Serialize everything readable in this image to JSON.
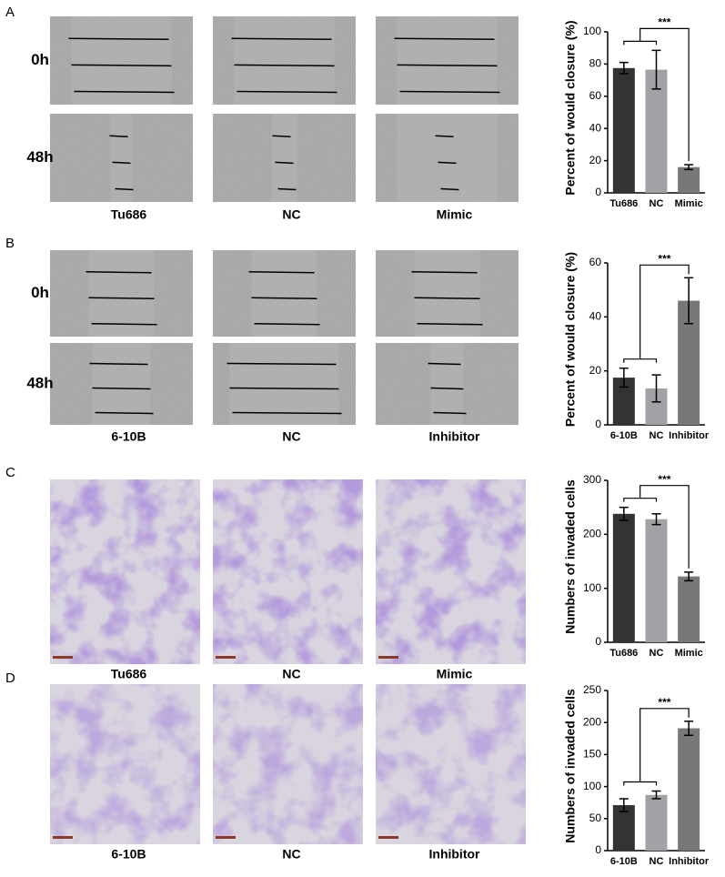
{
  "panels": [
    {
      "label": "A",
      "rows": [
        "0h",
        "48h"
      ],
      "columns": [
        "Tu686",
        "NC",
        "Mimic"
      ]
    },
    {
      "label": "B",
      "rows": [
        "0h",
        "48h"
      ],
      "columns": [
        "6-10B",
        "NC",
        "Inhibitor"
      ]
    },
    {
      "label": "C",
      "columns": [
        "Tu686",
        "NC",
        "Mimic"
      ]
    },
    {
      "label": "D",
      "columns": [
        "6-10B",
        "NC",
        "Inhibitor"
      ]
    }
  ],
  "chart_data": [
    {
      "type": "bar",
      "ylabel": "Percent of would closure (%)",
      "categories": [
        "Tu686",
        "NC",
        "Mimic"
      ],
      "values": [
        77.5,
        76.5,
        16
      ],
      "errors": [
        3.5,
        12,
        1.5
      ],
      "colors": [
        "#333333",
        "#a2a2a6",
        "#787878"
      ],
      "ylim": [
        0,
        100
      ],
      "yticks": [
        0,
        20,
        40,
        60,
        80,
        100
      ],
      "annotation": "***"
    },
    {
      "type": "bar",
      "ylabel": "Percent of would closure (%)",
      "categories": [
        "6-10B",
        "NC",
        "Inhibitor"
      ],
      "values": [
        17.5,
        13.5,
        46
      ],
      "errors": [
        3.5,
        5,
        8.5
      ],
      "colors": [
        "#333333",
        "#a2a2a6",
        "#787878"
      ],
      "ylim": [
        0,
        60
      ],
      "yticks": [
        0,
        20,
        40,
        60
      ],
      "annotation": "***"
    },
    {
      "type": "bar",
      "ylabel": "Numbers of invaded cells",
      "categories": [
        "Tu686",
        "NC",
        "Mimic"
      ],
      "values": [
        238,
        228,
        122
      ],
      "errors": [
        12,
        10,
        8
      ],
      "colors": [
        "#333333",
        "#a2a2a6",
        "#787878"
      ],
      "ylim": [
        0,
        300
      ],
      "yticks": [
        0,
        100,
        200,
        300
      ],
      "annotation": "***"
    },
    {
      "type": "bar",
      "ylabel": "Numbers of invaded cells",
      "categories": [
        "6-10B",
        "NC",
        "Inhibitor"
      ],
      "values": [
        71,
        87,
        191
      ],
      "errors": [
        10,
        6,
        11
      ],
      "colors": [
        "#333333",
        "#a2a2a6",
        "#787878"
      ],
      "ylim": [
        0,
        250
      ],
      "yticks": [
        0,
        50,
        100,
        150,
        200,
        250
      ],
      "annotation": "***"
    }
  ]
}
